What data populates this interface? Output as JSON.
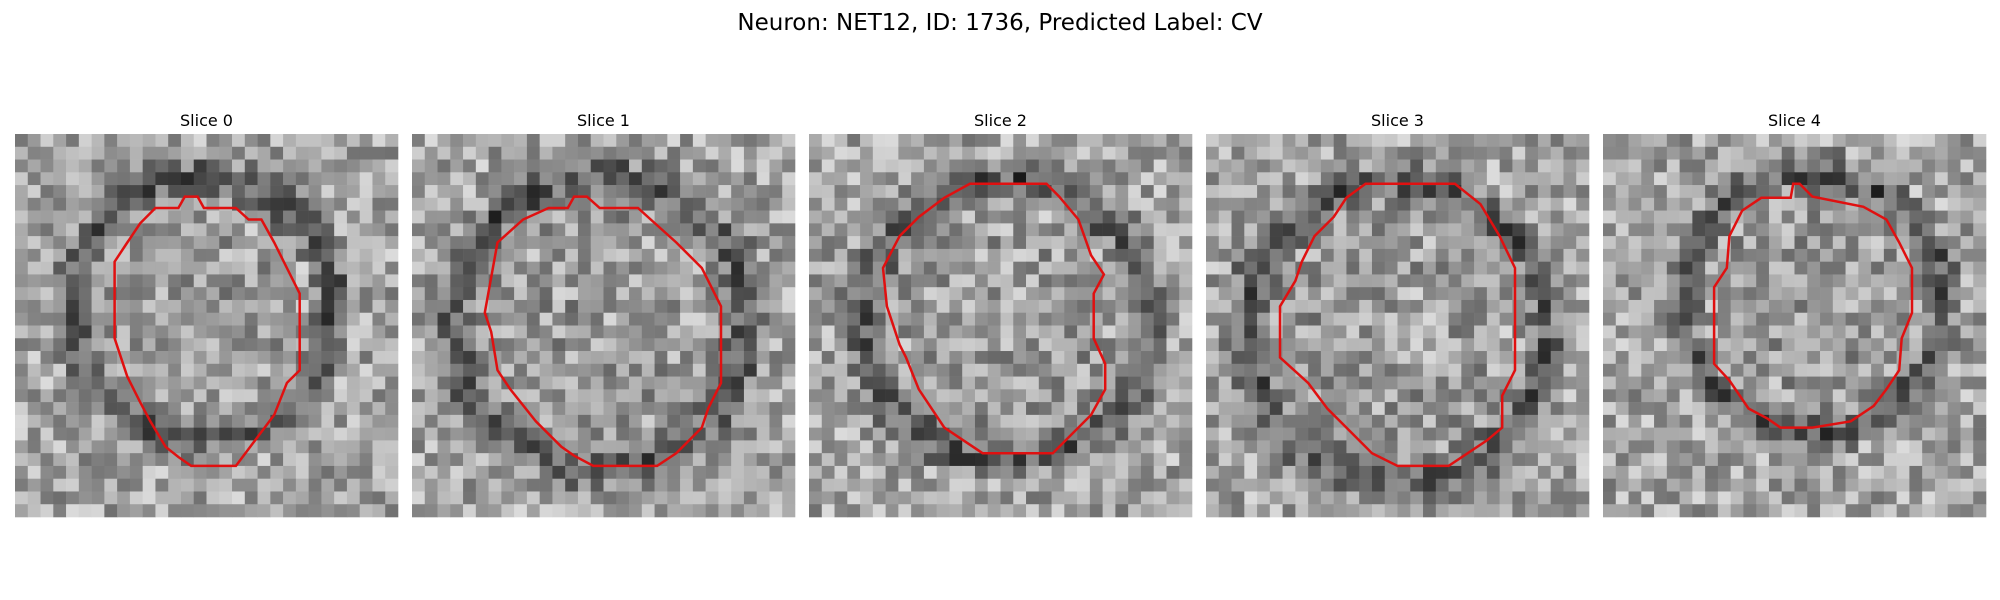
{
  "title": "Neuron: NET12, ID: 1736, Predicted Label: CV",
  "panels": [
    {
      "title": "Slice 0"
    },
    {
      "title": "Slice 1"
    },
    {
      "title": "Slice 2"
    },
    {
      "title": "Slice 3"
    },
    {
      "title": "Slice 4"
    }
  ]
}
